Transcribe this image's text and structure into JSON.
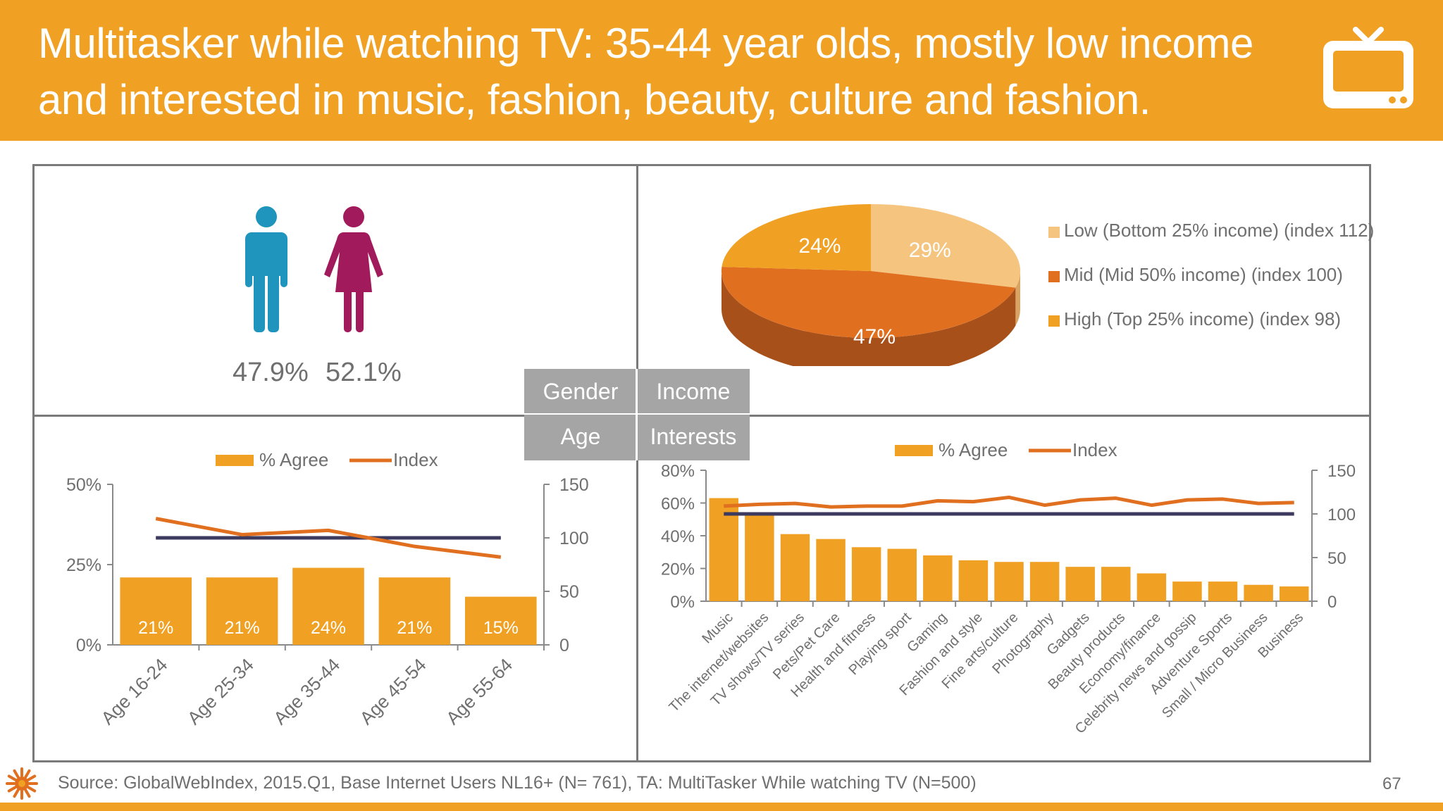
{
  "title": "Multitasker while watching TV: 35-44 year olds, mostly low income and interested in music, fashion, beauty, culture and fashion.",
  "colors": {
    "orange": "#f0a023",
    "orange_dark": "#e0701f",
    "orange_light": "#f5c47f",
    "navy": "#3c3a5e",
    "male": "#1f95bd",
    "female": "#a11a5c",
    "grey_box": "#a5a5a5"
  },
  "icons": {
    "tv": "tv-icon",
    "male": "male-icon",
    "female": "female-icon",
    "logo": "sun-logo"
  },
  "gender": {
    "male_pct": "47.9%",
    "female_pct": "52.1%"
  },
  "center_labels": {
    "gender": "Gender",
    "income": "Income",
    "age": "Age",
    "interests": "Interests"
  },
  "footer": {
    "source": "Source: GlobalWebIndex, 2015.Q1, Base Internet Users NL16+ (N= 761), TA: MultiTasker While watching TV (N=500)",
    "page": "67"
  },
  "chart_data": [
    {
      "type": "pie",
      "labels": [
        "Low (Bottom 25% income) (index 112)",
        "Mid (Mid 50% income) (index 100)",
        "High (Top 25% income) (index 98)"
      ],
      "values": [
        29,
        47,
        24
      ],
      "value_labels": [
        "29%",
        "47%",
        "24%"
      ],
      "colors": [
        "#f5c47f",
        "#e0701f",
        "#f0a023"
      ],
      "legend": "right"
    },
    {
      "type": "bar",
      "categories": [
        "Age 16-24",
        "Age 25-34",
        "Age 35-44",
        "Age 45-54",
        "Age 55-64"
      ],
      "series": [
        {
          "name": "% Agree",
          "values": [
            21,
            21,
            24,
            21,
            15
          ],
          "labels": [
            "21%",
            "21%",
            "24%",
            "21%",
            "15%"
          ],
          "axis": "left"
        },
        {
          "name": "Index",
          "type": "line",
          "values": [
            118,
            103,
            107,
            92,
            82
          ],
          "axis": "right"
        }
      ],
      "baseline": {
        "value": 100,
        "axis": "right"
      },
      "ylim": [
        0,
        50
      ],
      "yticks": [
        "0%",
        "25%",
        "50%"
      ],
      "ylim_right": [
        0,
        150
      ],
      "yticks_right": [
        "0",
        "50",
        "100",
        "150"
      ],
      "legend": "top"
    },
    {
      "type": "bar",
      "categories": [
        "Music",
        "The internet/websites",
        "TV shows/TV series",
        "Pets/Pet Care",
        "Health and fitness",
        "Playing sport",
        "Gaming",
        "Fashion and style",
        "Fine arts/culture",
        "Photography",
        "Gadgets",
        "Beauty products",
        "Economy/finance",
        "Celebrity news and gossip",
        "Adventure Sports",
        "Small / Micro Business",
        "Business"
      ],
      "series": [
        {
          "name": "% Agree",
          "values": [
            63,
            53,
            41,
            38,
            33,
            32,
            28,
            25,
            24,
            24,
            21,
            21,
            17,
            12,
            12,
            10,
            9
          ],
          "axis": "left"
        },
        {
          "name": "Index",
          "type": "line",
          "values": [
            109,
            111,
            112,
            108,
            109,
            109,
            115,
            114,
            119,
            110,
            116,
            118,
            110,
            116,
            117,
            112,
            113
          ],
          "axis": "right"
        }
      ],
      "baseline": {
        "value": 100,
        "axis": "right"
      },
      "ylim": [
        0,
        80
      ],
      "yticks": [
        "0%",
        "20%",
        "40%",
        "60%",
        "80%"
      ],
      "ylim_right": [
        0,
        150
      ],
      "yticks_right": [
        "0",
        "50",
        "100",
        "150"
      ],
      "legend": "top"
    }
  ]
}
